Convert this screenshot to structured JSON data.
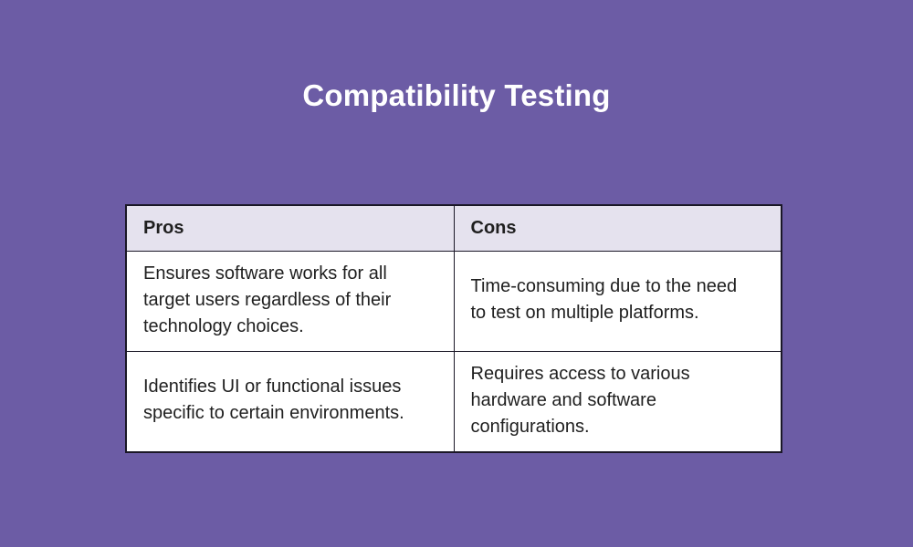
{
  "page": {
    "title": "Compatibility Testing",
    "background_color": "#6C5CA5",
    "title_color": "#FFFFFF"
  },
  "table": {
    "header_bg_color": "#E5E2EE",
    "body_bg_color": "#FFFFFF",
    "border_color": "#1A1726",
    "text_color": "#1F1F1F",
    "columns": [
      "Pros",
      "Cons"
    ],
    "rows": [
      [
        "Ensures software works for all target users regardless of their technology choices.",
        "Time-consuming due to the need to test on multiple platforms."
      ],
      [
        "Identifies UI or functional issues specific to certain environments.",
        "Requires access to various hardware and software configurations."
      ]
    ]
  }
}
